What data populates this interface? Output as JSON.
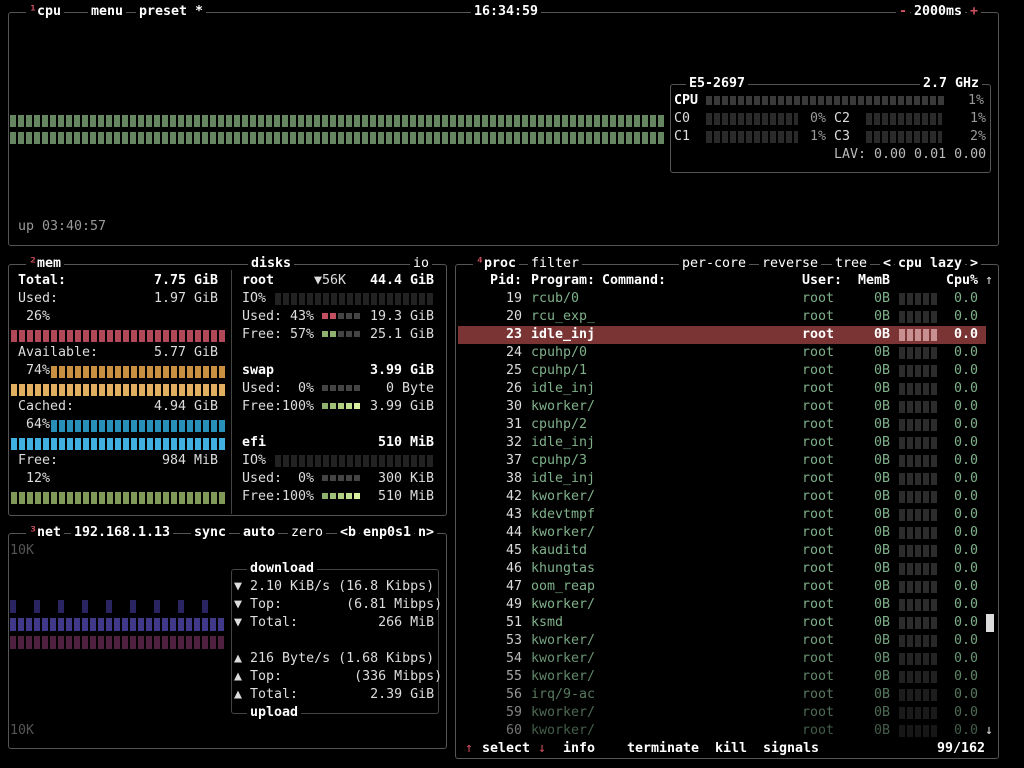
{
  "cpu_box": {
    "title": "cpu",
    "hotkey": "¹",
    "menu": "menu",
    "preset": "preset *",
    "clock": "16:34:59",
    "interval": "2000ms",
    "minus": "-",
    "plus": "+",
    "uptime": "up 03:40:57",
    "model": "E5-2697",
    "freq": "2.7 GHz",
    "total_label": "CPU",
    "total_pct": "1%",
    "cores": [
      {
        "name": "C0",
        "pct": "0%"
      },
      {
        "name": "C1",
        "pct": "1%"
      },
      {
        "name": "C2",
        "pct": "1%"
      },
      {
        "name": "C3",
        "pct": "2%"
      }
    ],
    "lav": "LAV: 0.00 0.01 0.00",
    "colors": {
      "graph": "#7fa87a"
    }
  },
  "mem": {
    "title": "mem",
    "hotkey": "²",
    "total_label": "Total:",
    "total": "7.75 GiB",
    "used_label": "Used:",
    "used": "1.97 GiB",
    "used_pct": "26%",
    "avail_label": "Available:",
    "avail": "5.77 GiB",
    "avail_pct": "74%",
    "cached_label": "Cached:",
    "cached": "4.94 GiB",
    "cached_pct": "64%",
    "free_label": "Free:",
    "free": "984 MiB",
    "free_pct": "12%",
    "colors": {
      "used": "#c0505a",
      "available": "#d4a040",
      "cached": "#30a0c8",
      "free": "#90b060"
    }
  },
  "disks": {
    "title": "disks",
    "io_label": "io",
    "root": {
      "name": "root",
      "io_rate": "▼56K",
      "size": "44.4 GiB",
      "io": "IO%",
      "used": "Used: 43%",
      "used_val": "19.3 GiB",
      "free": "Free: 57%",
      "free_val": "25.1 GiB"
    },
    "swap": {
      "name": "swap",
      "size": "3.99 GiB",
      "used": "Used:  0%",
      "used_val": "0 Byte",
      "free": "Free:100%",
      "free_val": "3.99 GiB"
    },
    "efi": {
      "name": "efi",
      "size": "510 MiB",
      "io": "IO%",
      "used": "Used:  0%",
      "used_val": "300 KiB",
      "free": "Free:100%",
      "free_val": "510 MiB"
    }
  },
  "net": {
    "title": "net",
    "hotkey": "³",
    "ip": "192.168.1.13",
    "sync": "sync",
    "auto": "auto",
    "zero": "zero",
    "prev": "<b",
    "iface": "enp0s1",
    "next": "n>",
    "scale_top": "10K",
    "scale_bottom": "10K",
    "download_label": "download",
    "upload_label": "upload",
    "down": [
      {
        "arrow": "▼",
        "text": "2.10 KiB/s (16.8 Kibps)"
      },
      {
        "arrow": "▼",
        "text": "Top:        (6.81 Mibps)"
      },
      {
        "arrow": "▼",
        "text": "Total:          266 MiB"
      }
    ],
    "up": [
      {
        "arrow": "▲",
        "text": "216 Byte/s (1.68 Kibps)"
      },
      {
        "arrow": "▲",
        "text": "Top:         (336 Mibps)"
      },
      {
        "arrow": "▲",
        "text": "Total:         2.39 GiB"
      }
    ]
  },
  "proc": {
    "title": "proc",
    "hotkey": "⁴",
    "filter": "filter",
    "per_core": "per-core",
    "reverse": "reverse",
    "tree": "tree",
    "sort_prev": "<",
    "sort": "cpu lazy",
    "sort_next": ">",
    "headers": {
      "pid": "Pid:",
      "program": "Program:",
      "command": "Command:",
      "user": "User:",
      "mem": "MemB",
      "cpu": "Cpu%"
    },
    "selected_pid": "23",
    "rows": [
      [
        "19",
        "rcub/0"
      ],
      [
        "20",
        "rcu_exp_"
      ],
      [
        "23",
        "idle_inj"
      ],
      [
        "24",
        "cpuhp/0"
      ],
      [
        "25",
        "cpuhp/1"
      ],
      [
        "26",
        "idle_inj"
      ],
      [
        "30",
        "kworker/"
      ],
      [
        "31",
        "cpuhp/2"
      ],
      [
        "32",
        "idle_inj"
      ],
      [
        "37",
        "cpuhp/3"
      ],
      [
        "38",
        "idle_inj"
      ],
      [
        "42",
        "kworker/"
      ],
      [
        "43",
        "kdevtmpf"
      ],
      [
        "44",
        "kworker/"
      ],
      [
        "45",
        "kauditd"
      ],
      [
        "46",
        "khungtas"
      ],
      [
        "47",
        "oom_reap"
      ],
      [
        "49",
        "kworker/"
      ],
      [
        "51",
        "ksmd"
      ],
      [
        "53",
        "kworker/"
      ],
      [
        "54",
        "kworker/"
      ],
      [
        "55",
        "kworker/"
      ],
      [
        "56",
        "irq/9-ac"
      ],
      [
        "59",
        "kworker/"
      ],
      [
        "60",
        "kworker/"
      ]
    ],
    "user": "root",
    "mem": "0B",
    "cpu": "0.0",
    "footer": {
      "select": "select",
      "info": "info",
      "terminate": "terminate",
      "kill": "kill",
      "signals": "signals",
      "count": "99/162"
    }
  }
}
